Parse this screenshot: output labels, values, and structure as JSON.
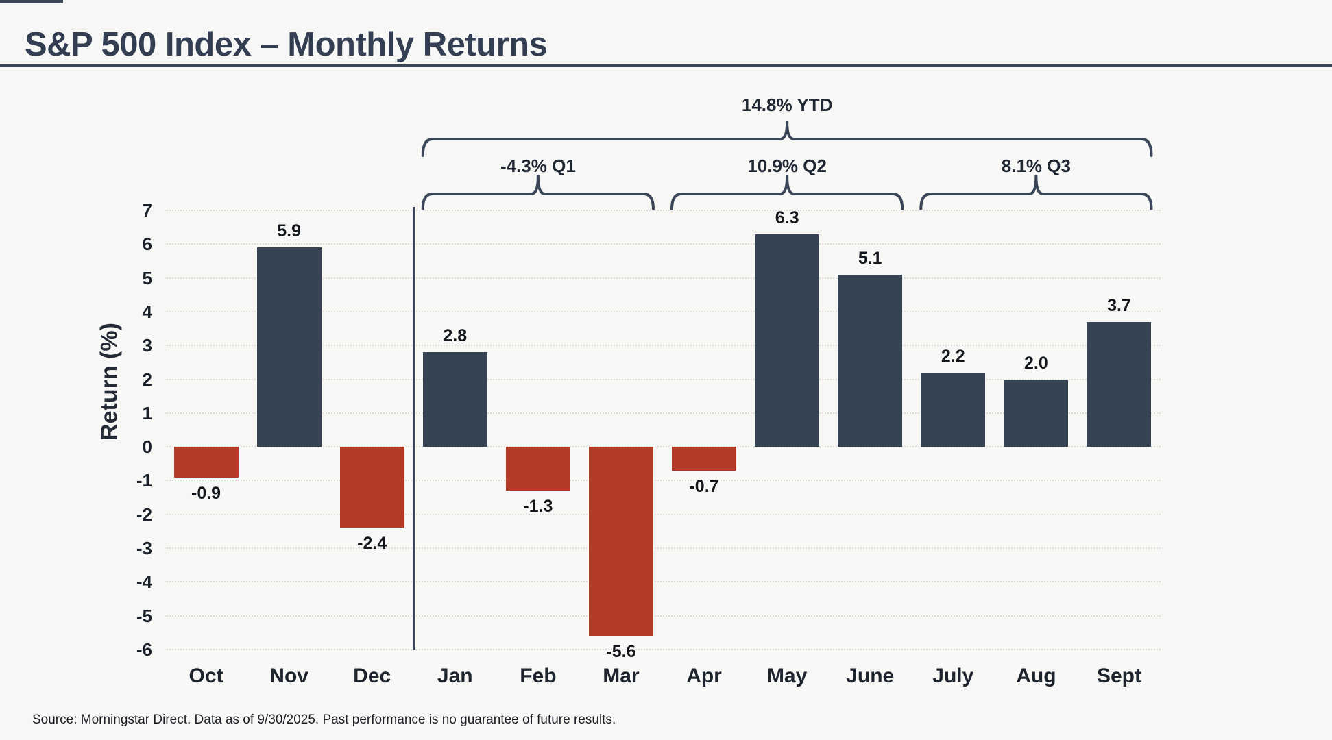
{
  "header": {
    "title": "S&P 500 Index – Monthly Returns"
  },
  "source_note": "Source: Morningstar Direct. Data as of 9/30/2025. Past performance is no guarantee of future results.",
  "annotations": {
    "ytd": {
      "label": "14.8% YTD",
      "from_month": "Jan",
      "to_month": "Sept"
    },
    "quarters": [
      {
        "label": "-4.3% Q1",
        "from_month": "Jan",
        "to_month": "Mar"
      },
      {
        "label": "10.9% Q2",
        "from_month": "Apr",
        "to_month": "June"
      },
      {
        "label": "8.1% Q3",
        "from_month": "July",
        "to_month": "Sept"
      }
    ]
  },
  "chart_data": {
    "type": "bar",
    "categories": [
      "Oct",
      "Nov",
      "Dec",
      "Jan",
      "Feb",
      "Mar",
      "Apr",
      "May",
      "June",
      "July",
      "Aug",
      "Sept"
    ],
    "values": [
      -0.9,
      5.9,
      -2.4,
      2.8,
      -1.3,
      -5.6,
      -0.7,
      6.3,
      5.1,
      2.2,
      2.0,
      3.7
    ],
    "title": "S&P 500 Index – Monthly Returns",
    "xlabel": "",
    "ylabel": "Return (%)",
    "ylim": [
      -6,
      7
    ],
    "ytick_step": 1,
    "grid": true,
    "legend": "none",
    "positive_color": "#364353",
    "negative_color": "#b23a27",
    "divider_after_index": 2
  },
  "colors": {
    "accent_dark": "#3a4658",
    "background": "#f7f7f6",
    "gridline": "#dedcd8"
  }
}
